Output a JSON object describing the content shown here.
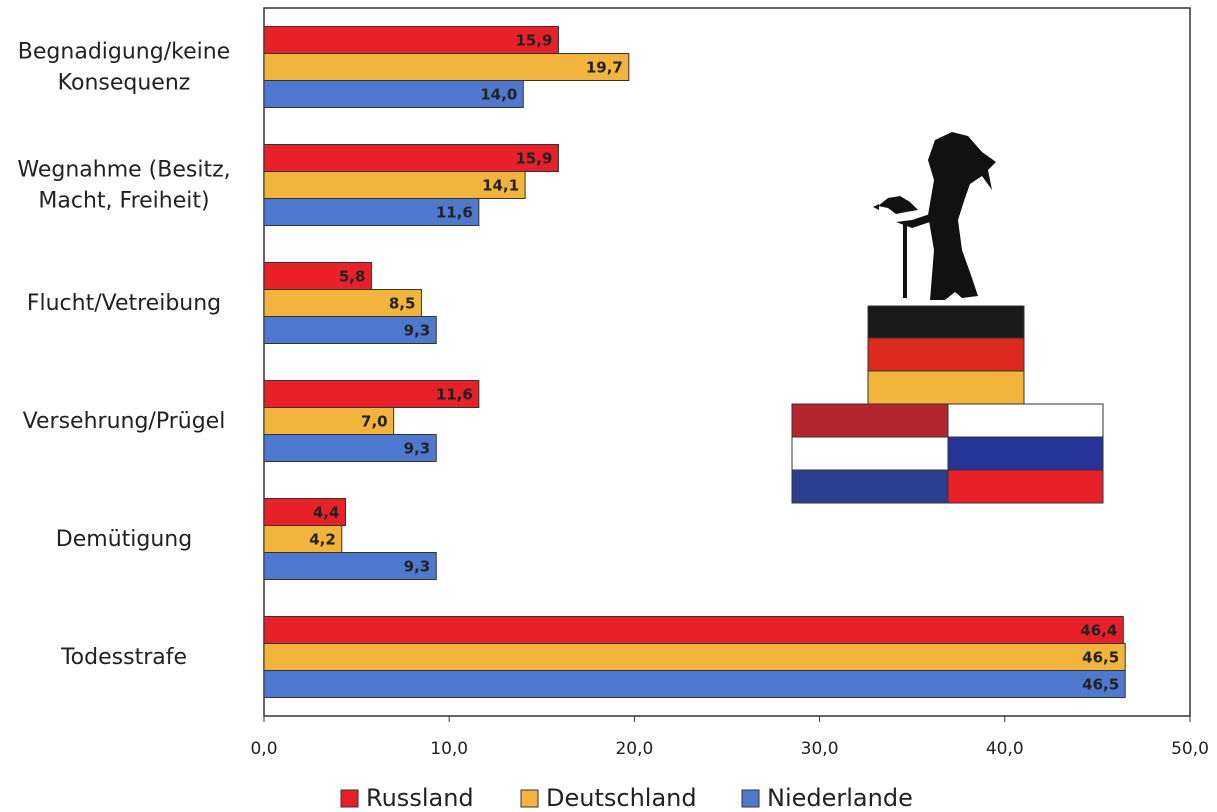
{
  "chart_data": {
    "type": "bar",
    "orientation": "horizontal",
    "categories": [
      [
        "Begnadigung/keine",
        "Konsequenz"
      ],
      [
        "Wegnahme (Besitz,",
        "Macht, Freiheit)"
      ],
      [
        "Flucht/Vetreibung"
      ],
      [
        "Versehrung/Prügel"
      ],
      [
        "Demütigung"
      ],
      [
        "Todesstrafe"
      ]
    ],
    "series": [
      {
        "name": "Russland",
        "color": "#e8202a",
        "values": [
          15.9,
          15.9,
          5.8,
          11.6,
          4.4,
          46.4
        ],
        "labels": [
          "15,9",
          "15,9",
          "5,8",
          "11,6",
          "4,4",
          "46,4"
        ]
      },
      {
        "name": "Deutschland",
        "color": "#f2b43c",
        "values": [
          19.7,
          14.1,
          8.5,
          7.0,
          4.2,
          46.5
        ],
        "labels": [
          "19,7",
          "14,1",
          "8,5",
          "7,0",
          "4,2",
          "46,5"
        ]
      },
      {
        "name": "Niederlande",
        "color": "#4f78cf",
        "values": [
          14.0,
          11.6,
          9.3,
          9.3,
          9.3,
          46.5
        ],
        "labels": [
          "14,0",
          "11,6",
          "9,3",
          "9,3",
          "9,3",
          "46,5"
        ]
      }
    ],
    "xlim": [
      0,
      50
    ],
    "ticks": [
      0,
      10,
      20,
      30,
      40,
      50
    ],
    "tick_labels": [
      "0,0",
      "10,0",
      "20,0",
      "30,0",
      "40,0",
      "50,0"
    ],
    "legend_position": "bottom",
    "grid": false,
    "illustration": {
      "icon": "witch-silhouette-icon",
      "flags": {
        "germany": [
          "#1a1a1a",
          "#dd2a1e",
          "#f2b43c"
        ],
        "netherlands": [
          "#b3262d",
          "#ffffff",
          "#2c3f8f"
        ],
        "russia": [
          "#ffffff",
          "#26349a",
          "#e8202a"
        ]
      }
    }
  }
}
